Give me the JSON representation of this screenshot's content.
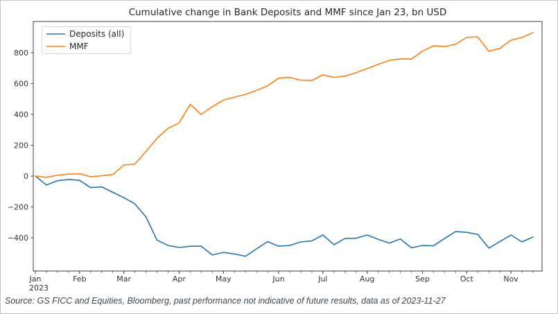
{
  "chart_data": {
    "type": "line",
    "title": "Cumulative change in Bank Deposits and MMF since Jan 23, bn USD",
    "xlabel": "",
    "ylabel": "",
    "x_frequency": "weekly",
    "n_points": 46,
    "ylim": [
      -620,
      1000
    ],
    "yticks": [
      -400,
      -200,
      0,
      200,
      400,
      600,
      800
    ],
    "grid": false,
    "legend_position": "upper left",
    "x_ticks": [
      {
        "i": 0,
        "label": "Jan",
        "sublabel": "2023"
      },
      {
        "i": 4,
        "label": "Feb",
        "sublabel": ""
      },
      {
        "i": 8,
        "label": "Mar",
        "sublabel": ""
      },
      {
        "i": 13,
        "label": "Apr",
        "sublabel": ""
      },
      {
        "i": 17,
        "label": "May",
        "sublabel": ""
      },
      {
        "i": 22,
        "label": "Jun",
        "sublabel": ""
      },
      {
        "i": 26,
        "label": "Jul",
        "sublabel": ""
      },
      {
        "i": 30,
        "label": "Aug",
        "sublabel": ""
      },
      {
        "i": 35,
        "label": "Sep",
        "sublabel": ""
      },
      {
        "i": 39,
        "label": "Oct",
        "sublabel": ""
      },
      {
        "i": 43,
        "label": "Nov",
        "sublabel": ""
      }
    ],
    "series": [
      {
        "name": "Deposits (all)",
        "color": "#1f77b4",
        "values": [
          0,
          -58,
          -30,
          -22,
          -28,
          -75,
          -70,
          -105,
          -140,
          -180,
          -265,
          -415,
          -450,
          -463,
          -455,
          -455,
          -512,
          -495,
          -505,
          -520,
          -472,
          -425,
          -455,
          -450,
          -427,
          -420,
          -382,
          -445,
          -405,
          -403,
          -382,
          -410,
          -435,
          -408,
          -465,
          -450,
          -452,
          -405,
          -360,
          -365,
          -378,
          -467,
          -425,
          -382,
          -427,
          -395
        ]
      },
      {
        "name": "MMF",
        "color": "#ff7f0e",
        "values": [
          0,
          -8,
          5,
          13,
          15,
          -4,
          2,
          10,
          72,
          78,
          160,
          245,
          310,
          345,
          465,
          400,
          450,
          492,
          512,
          530,
          555,
          585,
          635,
          640,
          622,
          620,
          656,
          640,
          648,
          670,
          697,
          724,
          750,
          760,
          758,
          810,
          845,
          840,
          855,
          899,
          903,
          809,
          828,
          881,
          899,
          930
        ]
      }
    ]
  },
  "source_note": "Source: GS FICC and Equities, Bloomberg, past performance not indicative of future results, data as of 2023-11-27"
}
